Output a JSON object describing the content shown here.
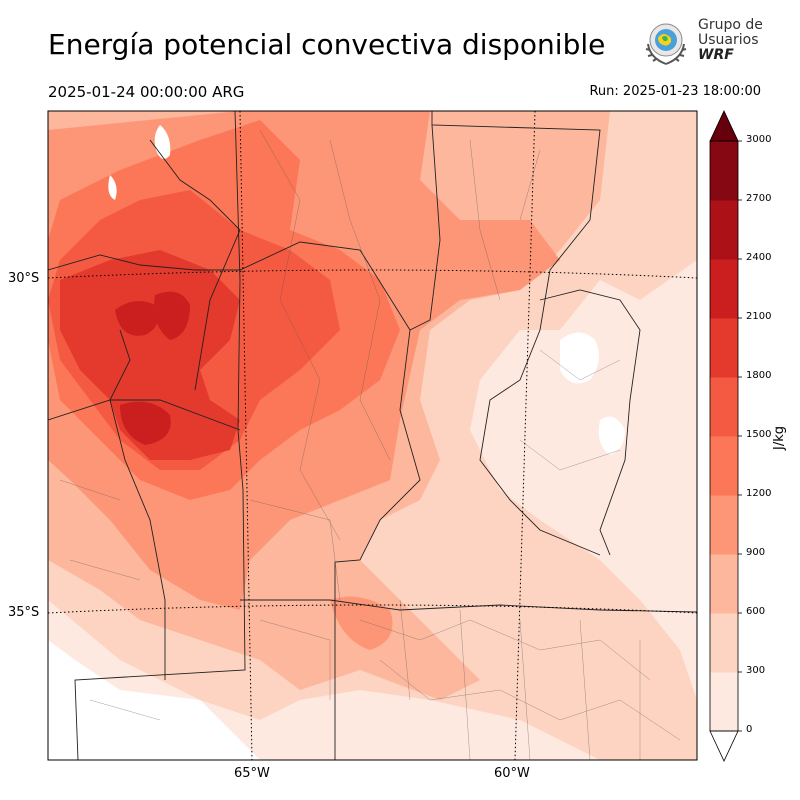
{
  "header": {
    "title": "Energía potencial convectiva disponible",
    "valid_time": "2025-01-24 00:00:00 ARG",
    "run_time": "Run: 2025-01-23 18:00:00"
  },
  "logo": {
    "line1": "Grupo de",
    "line2": "Usuarios",
    "line3": "WRF",
    "icon": "globe-laurel-icon"
  },
  "map": {
    "lat_labels": [
      "30°S",
      "35°S"
    ],
    "lon_labels": [
      "65°W",
      "60°W"
    ],
    "field": "CAPE"
  },
  "colorbar": {
    "unit": "J/kg",
    "ticks": [
      "0",
      "300",
      "600",
      "900",
      "1200",
      "1500",
      "1800",
      "2100",
      "2400",
      "2700",
      "3000"
    ],
    "colors": [
      "#fee9e0",
      "#fdd4c2",
      "#fcb79c",
      "#fc9677",
      "#fb7757",
      "#f45a41",
      "#e33a2d",
      "#cb1e1e",
      "#ad1118",
      "#860812"
    ],
    "extend": "both",
    "under_color": "#ffffff",
    "over_color": "#67000d"
  }
}
